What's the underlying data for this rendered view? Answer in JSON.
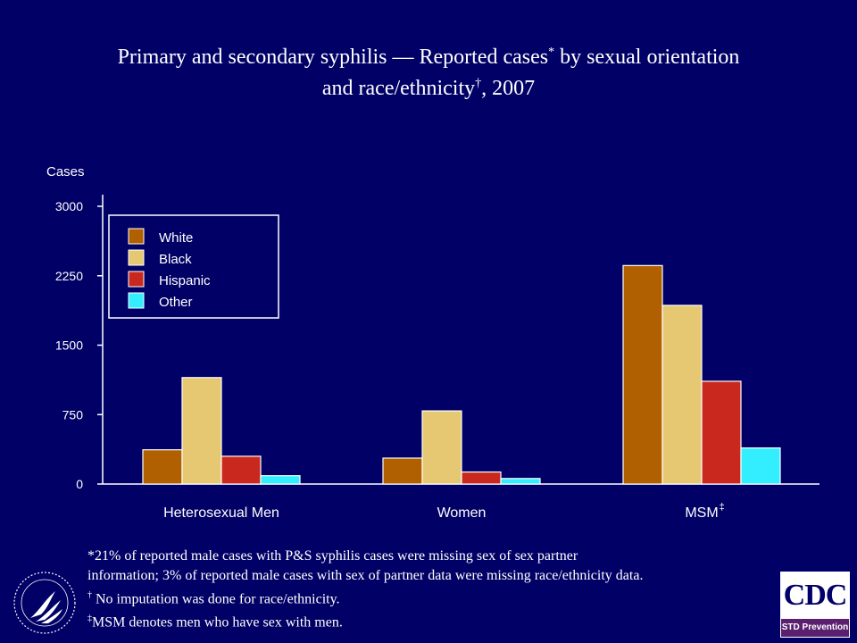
{
  "title": {
    "line1_part1": "Primary and secondary syphilis — Reported cases",
    "line1_mark": "*",
    "line1_part2": " by sexual orientation",
    "line2_part1": "and race/ethnicity",
    "line2_mark": "†",
    "line2_part2": ", 2007"
  },
  "colors": {
    "background": "#000066",
    "axis": "#ffffff"
  },
  "chart_data": {
    "type": "bar",
    "ylabel": "Cases",
    "xlabel": "",
    "ylim": [
      0,
      3000
    ],
    "yticks": [
      0,
      750,
      1500,
      2250,
      3000
    ],
    "categories": [
      "Heterosexual Men",
      "Women",
      "MSM"
    ],
    "category_marks": [
      "",
      "",
      "‡"
    ],
    "legend_position": "top-left",
    "series": [
      {
        "name": "White",
        "color": "#b06000",
        "values": [
          370,
          280,
          2360
        ]
      },
      {
        "name": "Black",
        "color": "#e6c873",
        "values": [
          1150,
          790,
          1930
        ]
      },
      {
        "name": "Hispanic",
        "color": "#c8281e",
        "values": [
          300,
          130,
          1110
        ]
      },
      {
        "name": "Other",
        "color": "#33eeff",
        "values": [
          90,
          60,
          390
        ]
      }
    ]
  },
  "footnotes": {
    "note1_mark": "*",
    "note1_line1": "21% of reported male cases with P&S syphilis cases were missing sex of sex partner",
    "note1_line2": "information; 3% of reported male cases with sex of partner data were missing race/ethnicity data.",
    "note2_mark": "†",
    "note2_text": " No imputation was done for race/ethnicity.",
    "note3_mark": "‡",
    "note3_text": "MSM denotes men who have sex with men."
  },
  "logos": {
    "cdc_text": "CDC",
    "cdc_subtext": "STD Prevention"
  }
}
